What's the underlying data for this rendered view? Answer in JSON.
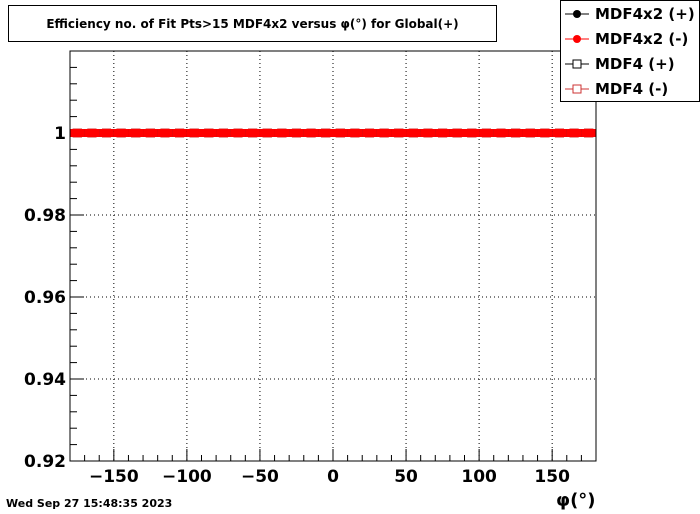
{
  "chart_data": {
    "type": "scatter",
    "title": "Efficiency no. of Fit Pts>15 MDF4x2 versus φ(°) for Global(+)",
    "xlabel": "φ(°)",
    "ylabel": "",
    "xlim": [
      -180,
      180
    ],
    "ylim": [
      0.92,
      1.02
    ],
    "x_ticks": [
      -150,
      -100,
      -50,
      0,
      50,
      100,
      150
    ],
    "x_tick_labels": [
      "−150",
      "−100",
      "−50",
      "0",
      "50",
      "100",
      "150"
    ],
    "y_ticks": [
      0.92,
      0.94,
      0.96,
      0.98,
      1.0
    ],
    "y_tick_labels": [
      "0.92",
      "0.94",
      "0.96",
      "0.98",
      "1"
    ],
    "grid": true,
    "legend_position": "top-right",
    "series": [
      {
        "name": "MDF4x2 (+)",
        "marker": "filled-circle",
        "color": "#000000",
        "x": [
          -175,
          -165,
          -155,
          -145,
          -135,
          -125,
          -115,
          -105,
          -95,
          -85,
          -75,
          -65,
          -55,
          -45,
          -35,
          -25,
          -15,
          -5,
          5,
          15,
          25,
          35,
          45,
          55,
          65,
          75,
          85,
          95,
          105,
          115,
          125,
          135,
          145,
          155,
          165,
          175
        ],
        "y": [
          1,
          1,
          1,
          1,
          1,
          1,
          1,
          1,
          1,
          1,
          1,
          1,
          1,
          1,
          1,
          1,
          1,
          1,
          1,
          1,
          1,
          1,
          1,
          1,
          1,
          1,
          1,
          1,
          1,
          1,
          1,
          1,
          1,
          1,
          1,
          1
        ]
      },
      {
        "name": "MDF4x2 (-)",
        "marker": "filled-circle",
        "color": "#ff0000",
        "x": [
          -175,
          -165,
          -155,
          -145,
          -135,
          -125,
          -115,
          -105,
          -95,
          -85,
          -75,
          -65,
          -55,
          -45,
          -35,
          -25,
          -15,
          -5,
          5,
          15,
          25,
          35,
          45,
          55,
          65,
          75,
          85,
          95,
          105,
          115,
          125,
          135,
          145,
          155,
          165,
          175
        ],
        "y": [
          1,
          1,
          1,
          1,
          1,
          1,
          1,
          1,
          1,
          1,
          1,
          1,
          1,
          1,
          1,
          1,
          1,
          1,
          1,
          1,
          1,
          1,
          1,
          1,
          1,
          1,
          1,
          1,
          1,
          1,
          1,
          1,
          1,
          1,
          1,
          1
        ]
      },
      {
        "name": "MDF4 (+)",
        "marker": "open-square",
        "color": "#000000",
        "x": [
          -175,
          -165,
          -155,
          -145,
          -135,
          -125,
          -115,
          -105,
          -95,
          -85,
          -75,
          -65,
          -55,
          -45,
          -35,
          -25,
          -15,
          -5,
          5,
          15,
          25,
          35,
          45,
          55,
          65,
          75,
          85,
          95,
          105,
          115,
          125,
          135,
          145,
          155,
          165,
          175
        ],
        "y": [
          1,
          1,
          1,
          1,
          1,
          1,
          1,
          1,
          1,
          1,
          1,
          1,
          1,
          1,
          1,
          1,
          1,
          1,
          1,
          1,
          1,
          1,
          1,
          1,
          1,
          1,
          1,
          1,
          1,
          1,
          1,
          1,
          1,
          1,
          1,
          1
        ]
      },
      {
        "name": "MDF4 (-)",
        "marker": "open-square",
        "color": "#cc3333",
        "x": [
          -175,
          -165,
          -155,
          -145,
          -135,
          -125,
          -115,
          -105,
          -95,
          -85,
          -75,
          -65,
          -55,
          -45,
          -35,
          -25,
          -15,
          -5,
          5,
          15,
          25,
          35,
          45,
          55,
          65,
          75,
          85,
          95,
          105,
          115,
          125,
          135,
          145,
          155,
          165,
          175
        ],
        "y": [
          1,
          1,
          1,
          1,
          1,
          1,
          1,
          1,
          1,
          1,
          1,
          1,
          1,
          1,
          1,
          1,
          1,
          1,
          1,
          1,
          1,
          1,
          1,
          1,
          1,
          1,
          1,
          1,
          1,
          1,
          1,
          1,
          1,
          1,
          1,
          1
        ]
      }
    ]
  },
  "datestamp": "Wed Sep 27 15:48:35 2023"
}
